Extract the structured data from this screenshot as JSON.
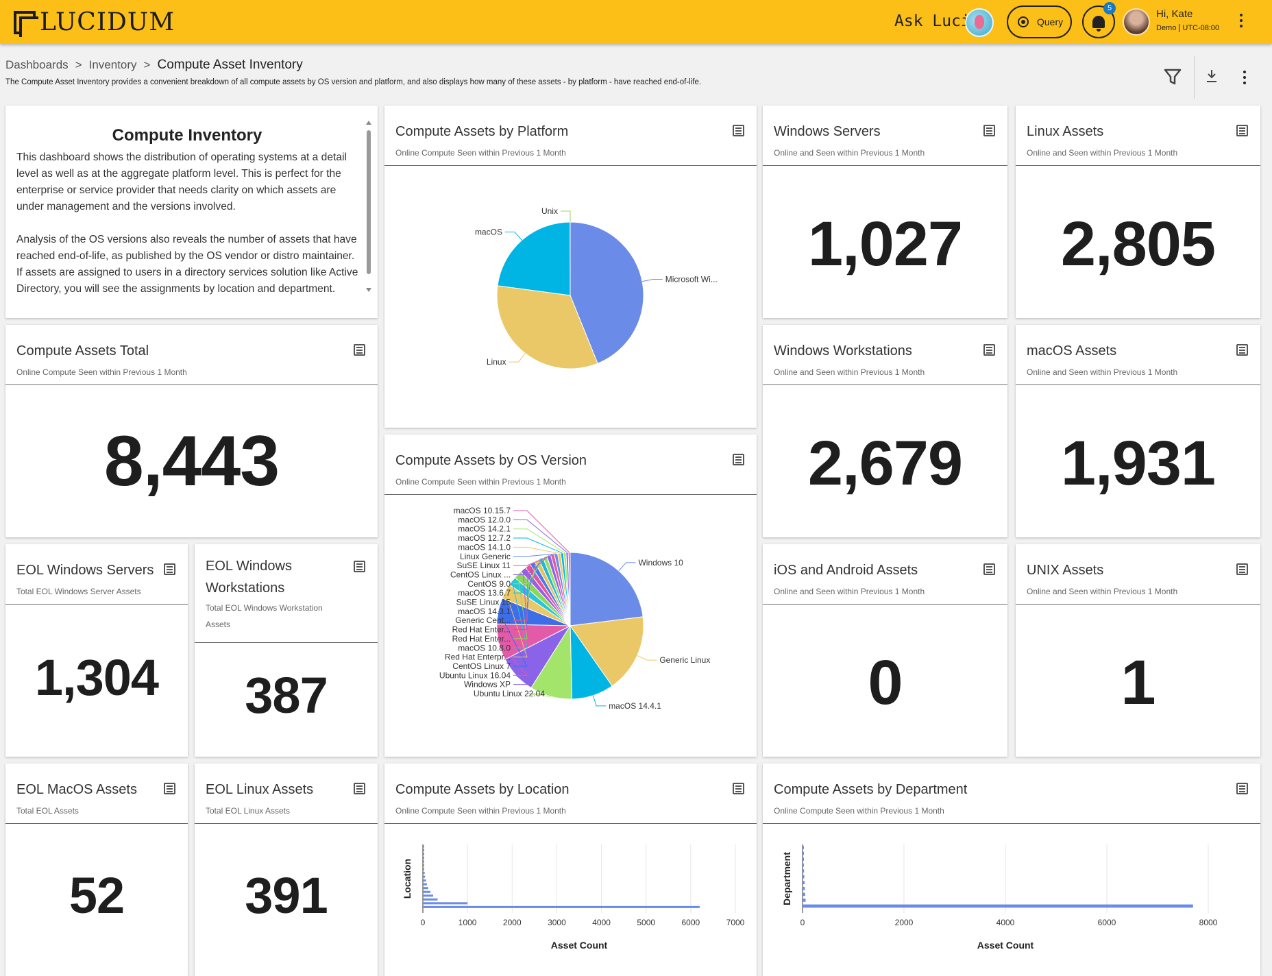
{
  "app": {
    "logo_text": "LUCIDUM",
    "ask_luci": "Ask Luci:",
    "query_label": "Query",
    "notification_count": "5"
  },
  "user": {
    "greeting": "Hi, Kate",
    "org": "Demo",
    "timezone": "UTC-08:00"
  },
  "breadcrumb": {
    "items": [
      "Dashboards",
      "Inventory"
    ],
    "separator": ">",
    "current": "Compute Asset Inventory"
  },
  "page": {
    "description": "The Compute Asset Inventory provides a convenient breakdown of all compute assets by OS version and platform, and also displays how many of these assets - by platform - have reached end-of-life."
  },
  "colors": {
    "topbar": "#fbbf17",
    "accent_blue": "#6a8be8",
    "yellow": "#ebc867",
    "cyan": "#00b4e4"
  },
  "inventory": {
    "title": "Compute Inventory",
    "paragraphs": [
      "This dashboard shows the distribution of operating systems at a detail level as well as at the aggregate platform level. This is perfect for the enterprise or service provider that needs clarity on which assets are under management and the versions involved.",
      "Analysis of the OS versions also reveals the number of assets that have reached end-of-life, as published by the OS vendor or distro maintainer. If assets are assigned to users in a directory services solution like Active Directory, you will see the assignments by location and department."
    ]
  },
  "cards": {
    "platform": {
      "title": "Compute Assets by Platform",
      "subtitle": "Online Compute Seen within Previous 1 Month"
    },
    "os_version": {
      "title": "Compute Assets by OS Version",
      "subtitle": "Online Compute Seen within Previous 1 Month"
    },
    "windows_servers": {
      "title": "Windows Servers",
      "subtitle": "Online and Seen within Previous 1 Month",
      "value": "1,027"
    },
    "linux": {
      "title": "Linux Assets",
      "subtitle": "Online and Seen within Previous 1 Month",
      "value": "2,805"
    },
    "total": {
      "title": "Compute Assets Total",
      "subtitle": "Online Compute Seen within Previous 1 Month",
      "value": "8,443"
    },
    "windows_workstations": {
      "title": "Windows Workstations",
      "subtitle": "Online and Seen within Previous 1 Month",
      "value": "2,679"
    },
    "macos": {
      "title": "macOS Assets",
      "subtitle": "Online and Seen within Previous 1 Month",
      "value": "1,931"
    },
    "eol_windows_servers": {
      "title": "EOL Windows Servers",
      "subtitle": "Total EOL Windows Server Assets",
      "value": "1,304"
    },
    "eol_windows_workstations": {
      "title_line1": "EOL Windows",
      "title_line2": "Workstations",
      "subtitle_line1": "Total EOL Windows Workstation",
      "subtitle_line2": "Assets",
      "value": "387"
    },
    "ios_android": {
      "title": "iOS and Android Assets",
      "subtitle": "Online and Seen within Previous 1 Month",
      "value": "0"
    },
    "unix": {
      "title": "UNIX Assets",
      "subtitle": "Online and Seen within Previous 1 Month",
      "value": "1"
    },
    "eol_macos": {
      "title": "EOL MacOS Assets",
      "subtitle": "Total EOL Assets",
      "value": "52"
    },
    "eol_linux": {
      "title": "EOL Linux Assets",
      "subtitle": "Total EOL Linux Assets",
      "value": "391"
    },
    "location": {
      "title": "Compute Assets by Location",
      "subtitle": "Online Compute Seen within Previous 1 Month"
    },
    "department": {
      "title": "Compute Assets by Department",
      "subtitle": "Online Compute Seen within Previous 1 Month"
    }
  },
  "chart_data": [
    {
      "type": "pie",
      "chart": "platform",
      "labels": [
        "Microsoft Wi...",
        "Linux",
        "macOS",
        "Unix"
      ],
      "values": [
        3706,
        2805,
        1931,
        1
      ],
      "colors": [
        "#6a8be8",
        "#ebc867",
        "#00b4e4",
        "#9bd45c"
      ]
    },
    {
      "type": "pie",
      "chart": "os_version",
      "labels": [
        "Windows 10",
        "Generic Linux",
        "macOS 14.4.1",
        "Ubuntu Linux 22.04",
        "Windows XP",
        "Ubuntu Linux 16.04",
        "CentOS Linux 7",
        "Red Hat Enterpr...",
        "macOS 10.8.0",
        "Red Hat Enter...",
        "Red Hat Enter...",
        "Generic Cent...",
        "macOS 14.3.1",
        "SuSE Linux 15",
        "macOS 13.6.7",
        "CentOS 9.0",
        "CentOS Linux ...",
        "SuSE Linux 11",
        "Linux Generic",
        "macOS 14.1.0",
        "macOS 12.7.2",
        "macOS 14.2.1",
        "macOS 12.0.0",
        "macOS 10.15.7"
      ],
      "values": [
        1880,
        1410,
        760,
        760,
        690,
        650,
        470,
        270,
        160,
        150,
        110,
        100,
        90,
        85,
        80,
        75,
        70,
        65,
        60,
        55,
        50,
        45,
        40,
        35
      ],
      "colors": [
        "#6a8be8",
        "#ebc867",
        "#00b4e4",
        "#a3e56a",
        "#8a63e8",
        "#e25aa8",
        "#3d6ee8",
        "#ebc867",
        "#28c6d8",
        "#8ad75c",
        "#9a5fe0",
        "#e2549e",
        "#4a7ae6",
        "#e4c260",
        "#25b5d6",
        "#96de6a",
        "#8a63e8",
        "#e25aa8",
        "#6a8be8",
        "#ebc867",
        "#00b4e4",
        "#a3e56a",
        "#8a63e8",
        "#e25aa8"
      ]
    },
    {
      "type": "bar",
      "chart": "location",
      "orientation": "horizontal",
      "xlabel": "Asset Count",
      "ylabel": "Location",
      "xlim": [
        0,
        7000
      ],
      "xticks": [
        0,
        1000,
        2000,
        3000,
        4000,
        5000,
        6000,
        7000
      ],
      "values": [
        6200,
        1000,
        330,
        230,
        170,
        120,
        90,
        70,
        50,
        40,
        30,
        25,
        20,
        15,
        10,
        8,
        5
      ],
      "color": "#6a8be8",
      "grid": true
    },
    {
      "type": "bar",
      "chart": "department",
      "orientation": "horizontal",
      "xlabel": "Asset Count",
      "ylabel": "Department",
      "xlim": [
        0,
        8000
      ],
      "xticks": [
        0,
        2000,
        4000,
        6000,
        8000
      ],
      "values": [
        7700,
        60,
        50,
        45,
        40,
        35,
        30,
        25,
        20,
        15,
        10
      ],
      "color": "#6a8be8",
      "grid": true
    }
  ]
}
